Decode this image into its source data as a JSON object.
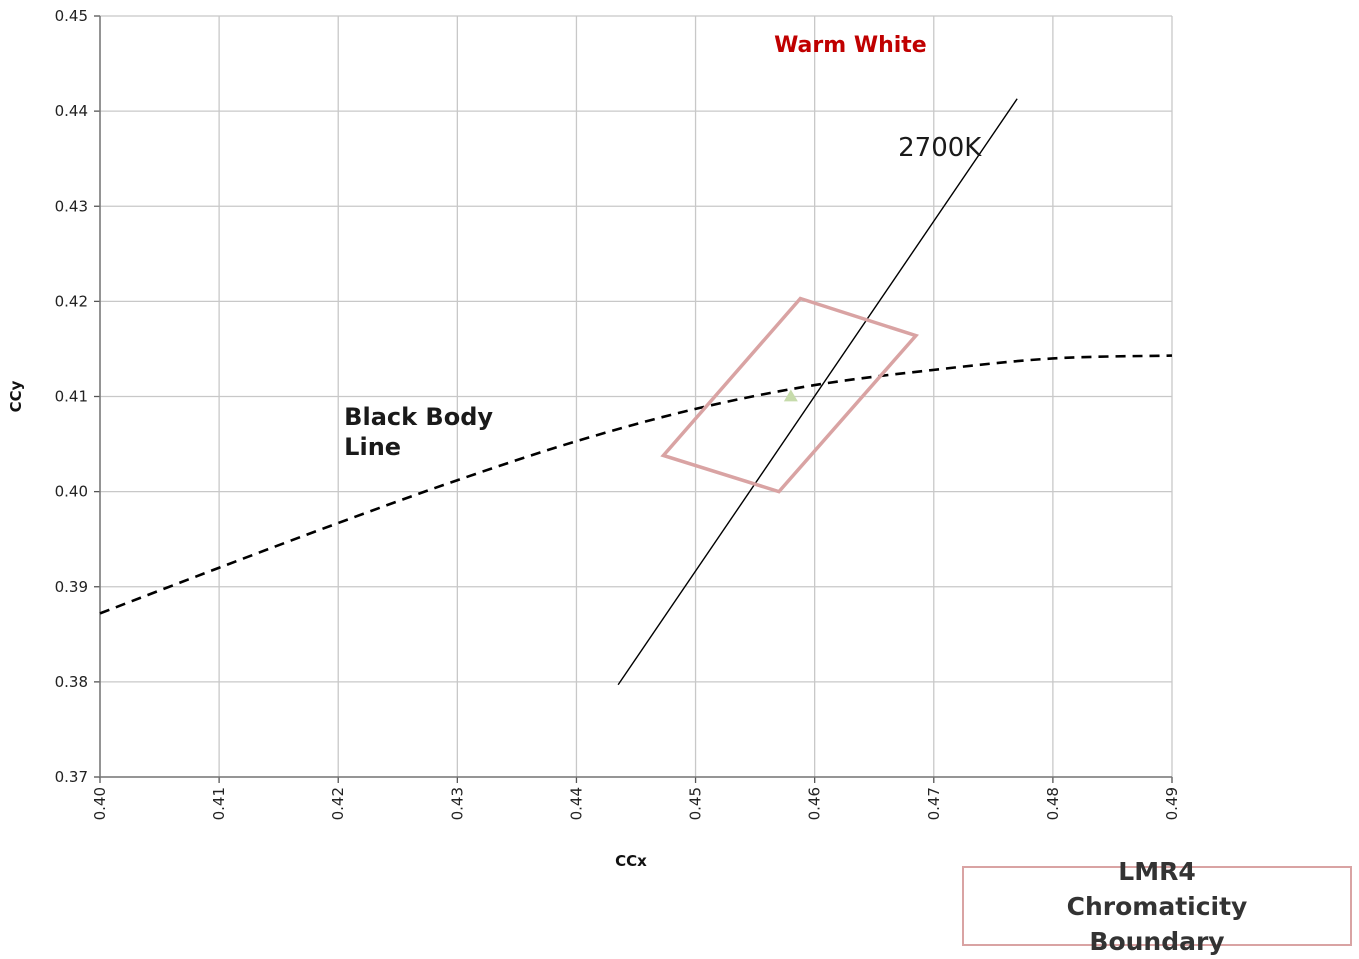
{
  "chart_data": {
    "type": "scatter",
    "title": "",
    "xlabel": "CCx",
    "ylabel": "CCy",
    "xlim": [
      0.4,
      0.49
    ],
    "ylim": [
      0.37,
      0.45
    ],
    "x_ticks": [
      "0.40",
      "0.41",
      "0.42",
      "0.43",
      "0.44",
      "0.45",
      "0.46",
      "0.47",
      "0.48",
      "0.49"
    ],
    "y_ticks": [
      "0.37",
      "0.38",
      "0.39",
      "0.40",
      "0.41",
      "0.42",
      "0.43",
      "0.44",
      "0.45"
    ],
    "grid": true,
    "series": [
      {
        "name": "Black Body Line",
        "kind": "dashed-line",
        "color": "#000000",
        "points": [
          [
            0.4,
            0.3872
          ],
          [
            0.41,
            0.392
          ],
          [
            0.42,
            0.3967
          ],
          [
            0.43,
            0.4012
          ],
          [
            0.44,
            0.4053
          ],
          [
            0.45,
            0.4087
          ],
          [
            0.46,
            0.4112
          ],
          [
            0.47,
            0.4128
          ],
          [
            0.48,
            0.414
          ],
          [
            0.49,
            0.4143
          ]
        ]
      },
      {
        "name": "2700K",
        "kind": "line",
        "color": "#000000",
        "points": [
          [
            0.4435,
            0.3797
          ],
          [
            0.477,
            0.4413
          ]
        ]
      },
      {
        "name": "LMR4 Chromaticity Boundary",
        "kind": "polygon",
        "color": "#d9a3a3",
        "points": [
          [
            0.4588,
            0.4203
          ],
          [
            0.4685,
            0.4164
          ],
          [
            0.457,
            0.4
          ],
          [
            0.4473,
            0.4038
          ]
        ]
      },
      {
        "name": "",
        "kind": "marker-triangle",
        "color": "#c6dbab",
        "points": [
          [
            0.458,
            0.41
          ]
        ]
      }
    ],
    "annotations": [
      {
        "id": "black-body",
        "lines": [
          "Black Body",
          "Line"
        ],
        "x": 0.4205,
        "y": 0.407
      },
      {
        "id": "warm-white",
        "text": "Warm White",
        "x": 0.463,
        "y": 0.4462,
        "color": "#c00000"
      },
      {
        "id": "label-2700",
        "text": "2700K",
        "x": 0.4705,
        "y": 0.4353
      }
    ],
    "legend": {
      "position": "bottom-right",
      "lines": [
        "LMR4 Chromaticity",
        "Boundary"
      ],
      "border_color": "#d9a3a3"
    }
  }
}
